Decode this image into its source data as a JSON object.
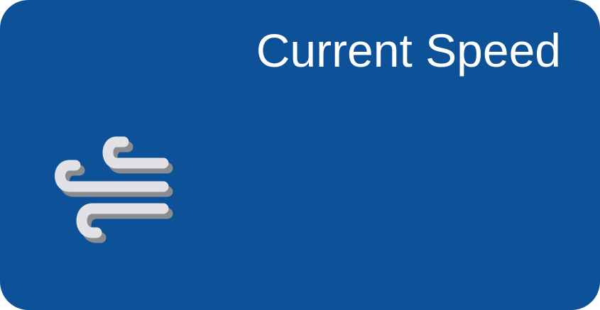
{
  "widget": {
    "title": "Current Speed",
    "icon": "wind-icon",
    "value": ""
  },
  "colors": {
    "background": "#0d5298",
    "title_text": "#ffffff",
    "icon_fill": "#e2e2e6",
    "icon_shadow": "#8a8c90"
  }
}
